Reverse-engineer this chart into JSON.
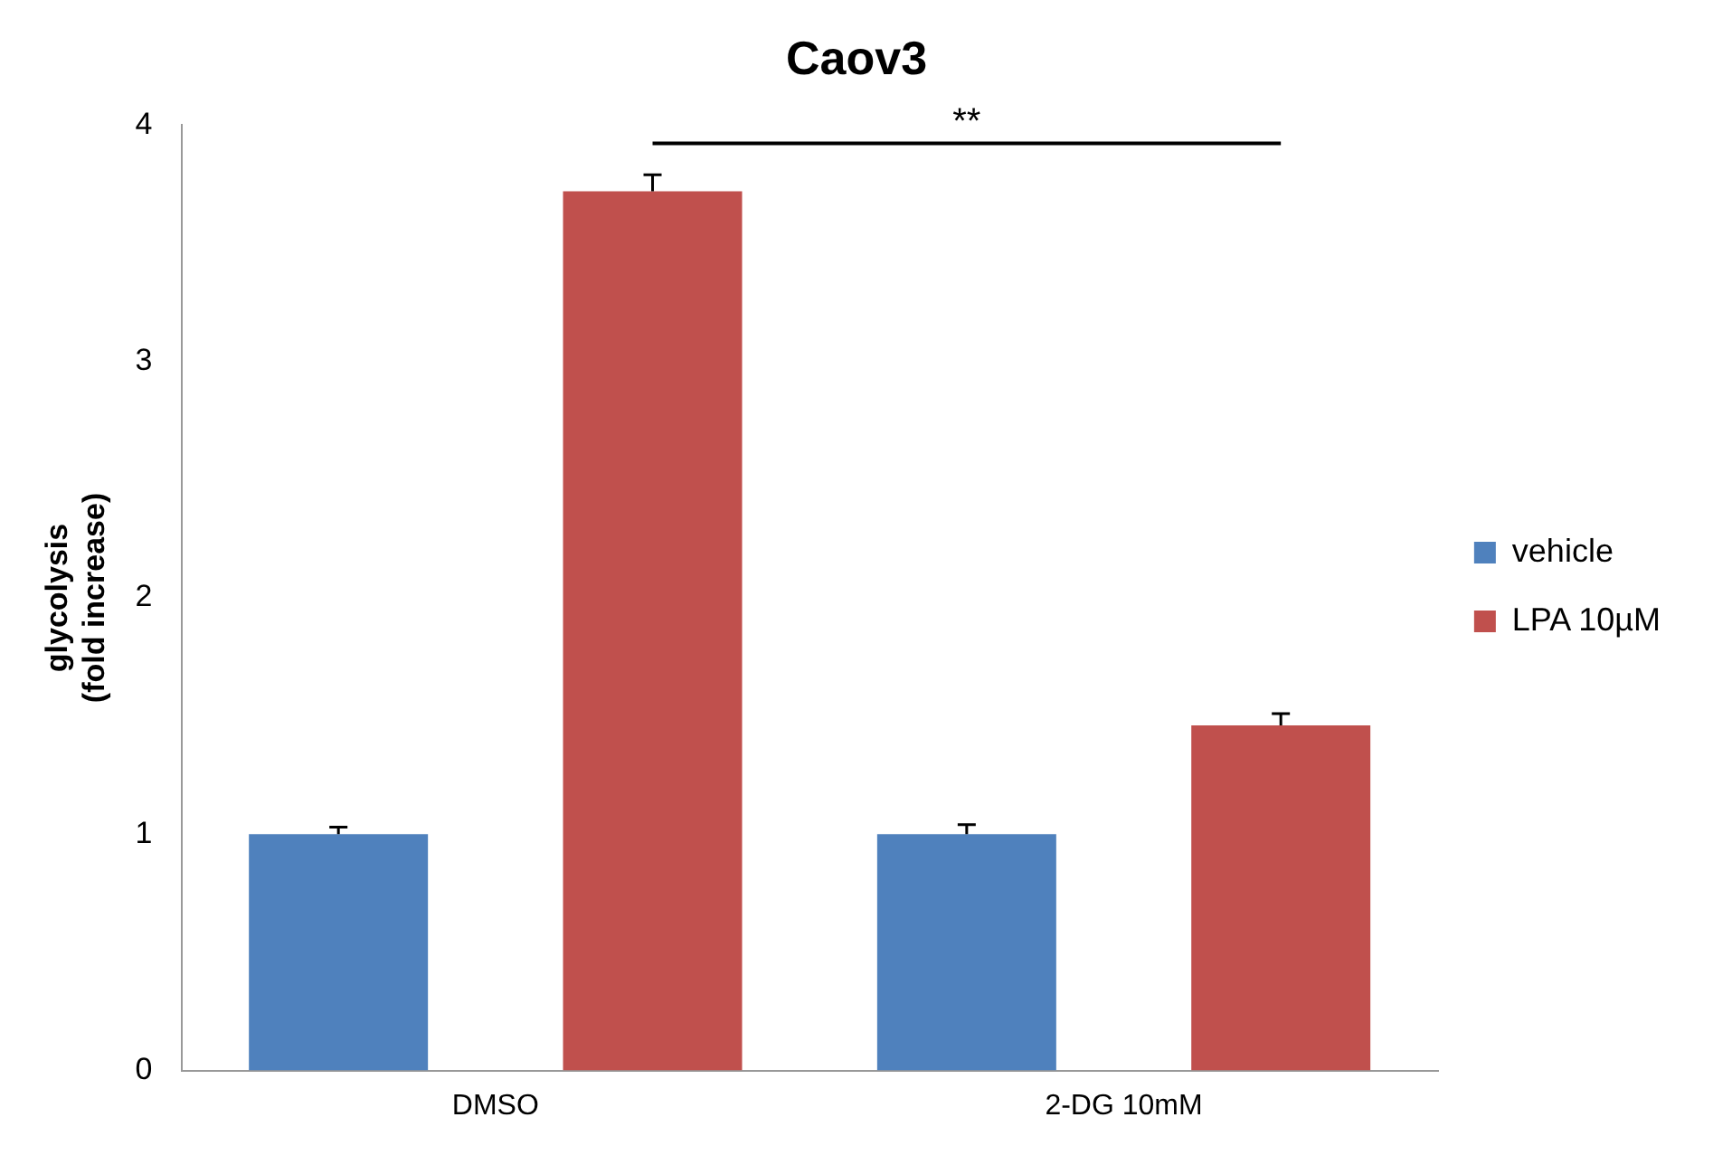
{
  "chart_data": {
    "type": "bar",
    "title": "Caov3",
    "ylabel": "glycolysis\n(fold increase)",
    "categories": [
      "DMSO",
      "2-DG 10mM"
    ],
    "series": [
      {
        "name": "vehicle",
        "color": "#4f81bd",
        "values": [
          1.0,
          1.0
        ],
        "errors": [
          0.03,
          0.04
        ]
      },
      {
        "name": "LPA 10µM",
        "color": "#c0504d",
        "values": [
          3.72,
          1.46
        ],
        "errors": [
          0.07,
          0.05
        ]
      }
    ],
    "ylim": [
      0,
      4
    ],
    "yticks": [
      0,
      1,
      2,
      3,
      4
    ],
    "grid": false,
    "legend": "right",
    "annotations": [
      "**"
    ]
  }
}
